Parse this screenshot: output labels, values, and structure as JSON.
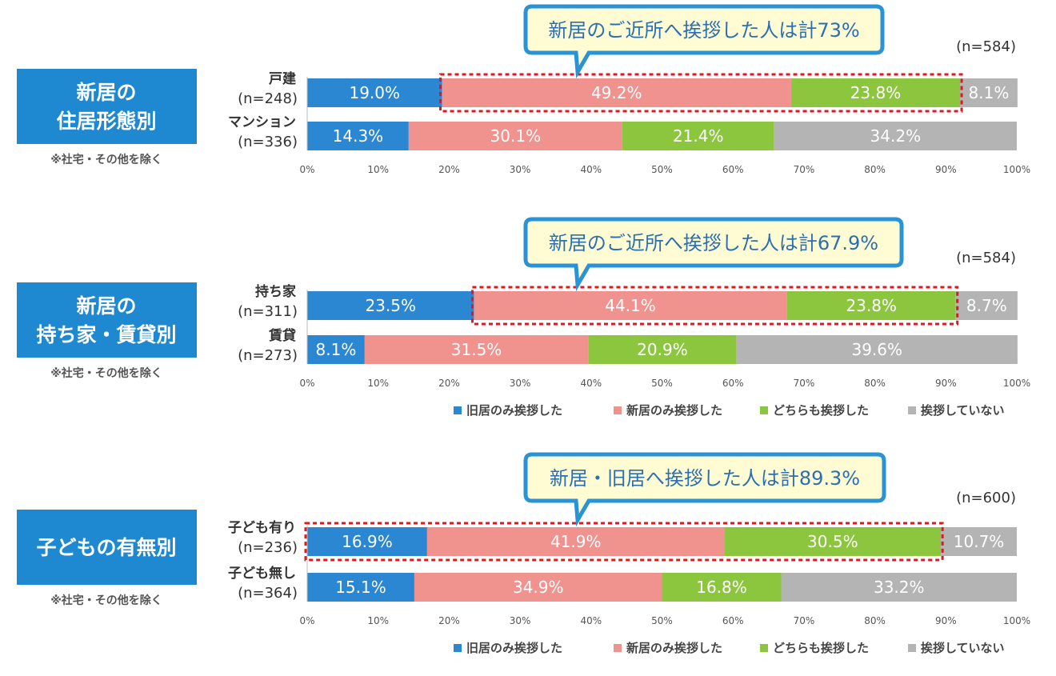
{
  "colors": {
    "old_only": "#2b87d1",
    "new_only": "#f0938f",
    "both": "#8cc63f",
    "none": "#b4b4b4",
    "group_box": "#1e88d0",
    "callout_bg": "#fffbd2",
    "callout_border": "#2a93d5",
    "highlight": "#e2161e"
  },
  "legend": {
    "old_only": "旧居のみ挨拶した",
    "new_only": "新居のみ挨拶した",
    "both": "どちらも挨拶した",
    "none": "挨拶していない"
  },
  "chart_data": [
    {
      "type": "bar",
      "stacked": true,
      "orientation": "horizontal",
      "group_title": [
        "新居の",
        "住居形態別"
      ],
      "note": "※社宅・その他を除く",
      "n_total": "(n=584)",
      "callout": "新居のご近所へ挨拶した人は計73%",
      "categories": [
        {
          "name": "戸建",
          "n": "(n=248)"
        },
        {
          "name": "マンション",
          "n": "(n=336)"
        }
      ],
      "series": [
        {
          "name": "旧居のみ挨拶した",
          "values": [
            19.0,
            14.3
          ],
          "labels": [
            "19.0%",
            "14.3%"
          ]
        },
        {
          "name": "新居のみ挨拶した",
          "values": [
            49.2,
            30.1
          ],
          "labels": [
            "49.2%",
            "30.1%"
          ]
        },
        {
          "name": "どちらも挨拶した",
          "values": [
            23.8,
            21.4
          ],
          "labels": [
            "23.8%",
            "21.4%"
          ]
        },
        {
          "name": "挨拶していない",
          "values": [
            8.1,
            34.2
          ],
          "labels": [
            "8.1%",
            "34.2%"
          ]
        }
      ],
      "highlight": {
        "row": 0,
        "from_series": 1,
        "to_series": 2
      },
      "xlim": [
        0,
        100
      ],
      "x_ticks": [
        "0%",
        "10%",
        "20%",
        "30%",
        "40%",
        "50%",
        "60%",
        "70%",
        "80%",
        "90%",
        "100%"
      ],
      "legend_shown": false
    },
    {
      "type": "bar",
      "stacked": true,
      "orientation": "horizontal",
      "group_title": [
        "新居の",
        "持ち家・賃貸別"
      ],
      "note": "※社宅・その他を除く",
      "n_total": "(n=584)",
      "callout": "新居のご近所へ挨拶した人は計67.9%",
      "categories": [
        {
          "name": "持ち家",
          "n": "(n=311)"
        },
        {
          "name": "賃貸",
          "n": "(n=273)"
        }
      ],
      "series": [
        {
          "name": "旧居のみ挨拶した",
          "values": [
            23.5,
            8.1
          ],
          "labels": [
            "23.5%",
            "8.1%"
          ]
        },
        {
          "name": "新居のみ挨拶した",
          "values": [
            44.1,
            31.5
          ],
          "labels": [
            "44.1%",
            "31.5%"
          ]
        },
        {
          "name": "どちらも挨拶した",
          "values": [
            23.8,
            20.9
          ],
          "labels": [
            "23.8%",
            "20.9%"
          ]
        },
        {
          "name": "挨拶していない",
          "values": [
            8.7,
            39.6
          ],
          "labels": [
            "8.7%",
            "39.6%"
          ]
        }
      ],
      "highlight": {
        "row": 0,
        "from_series": 1,
        "to_series": 2
      },
      "xlim": [
        0,
        100
      ],
      "x_ticks": [
        "0%",
        "10%",
        "20%",
        "30%",
        "40%",
        "50%",
        "60%",
        "70%",
        "80%",
        "90%",
        "100%"
      ],
      "legend_shown": true
    },
    {
      "type": "bar",
      "stacked": true,
      "orientation": "horizontal",
      "group_title": [
        "子どもの有無別"
      ],
      "note": "※社宅・その他を除く",
      "n_total": "(n=600)",
      "callout": "新居・旧居へ挨拶した人は計89.3%",
      "categories": [
        {
          "name": "子ども有り",
          "n": "(n=236)"
        },
        {
          "name": "子ども無し",
          "n": "(n=364)"
        }
      ],
      "series": [
        {
          "name": "旧居のみ挨拶した",
          "values": [
            16.9,
            15.1
          ],
          "labels": [
            "16.9%",
            "15.1%"
          ]
        },
        {
          "name": "新居のみ挨拶した",
          "values": [
            41.9,
            34.9
          ],
          "labels": [
            "41.9%",
            "34.9%"
          ]
        },
        {
          "name": "どちらも挨拶した",
          "values": [
            30.5,
            16.8
          ],
          "labels": [
            "30.5%",
            "16.8%"
          ]
        },
        {
          "name": "挨拶していない",
          "values": [
            10.7,
            33.2
          ],
          "labels": [
            "10.7%",
            "33.2%"
          ]
        }
      ],
      "highlight": {
        "row": 0,
        "from_series": 0,
        "to_series": 2
      },
      "xlim": [
        0,
        100
      ],
      "x_ticks": [
        "0%",
        "10%",
        "20%",
        "30%",
        "40%",
        "50%",
        "60%",
        "70%",
        "80%",
        "90%",
        "100%"
      ],
      "legend_shown": true
    }
  ]
}
